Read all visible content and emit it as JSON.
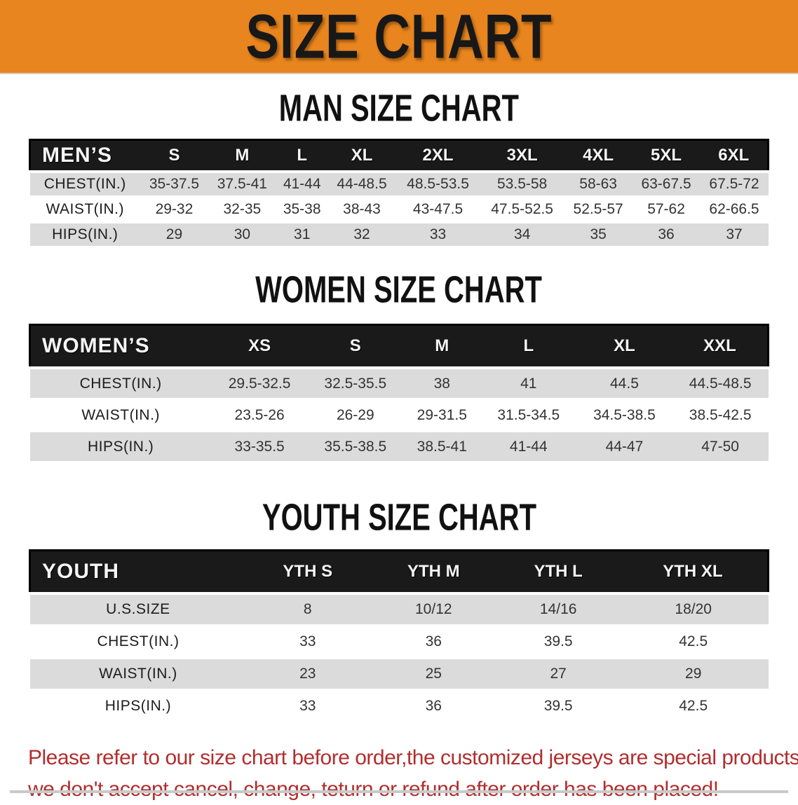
{
  "banner": {
    "title": "SIZE CHART"
  },
  "colors": {
    "banner_bg": "#E8851E",
    "header_bg": "#1A1A1A",
    "row_gray": "#DBDBDB",
    "title_color": "#111111",
    "cell_text": "#333333",
    "disclaimer_red": "#B12E2E"
  },
  "tables": [
    {
      "title": "MAN SIZE CHART",
      "corner_label": "MEN’S",
      "columns": [
        "S",
        "M",
        "L",
        "XL",
        "2XL",
        "3XL",
        "4XL",
        "5XL",
        "6XL"
      ],
      "rows": [
        {
          "label": "CHEST(IN.)",
          "values": [
            "35-37.5",
            "37.5-41",
            "41-44",
            "44-48.5",
            "48.5-53.5",
            "53.5-58",
            "58-63",
            "63-67.5",
            "67.5-72"
          ]
        },
        {
          "label": "WAIST(IN.)",
          "values": [
            "29-32",
            "32-35",
            "35-38",
            "38-43",
            "43-47.5",
            "47.5-52.5",
            "52.5-57",
            "57-62",
            "62-66.5"
          ]
        },
        {
          "label": "HIPS(IN.)",
          "values": [
            "29",
            "30",
            "31",
            "32",
            "33",
            "34",
            "35",
            "36",
            "37"
          ]
        }
      ]
    },
    {
      "title": "WOMEN SIZE CHART",
      "corner_label": "WOMEN’S",
      "columns": [
        "XS",
        "S",
        "M",
        "L",
        "XL",
        "XXL"
      ],
      "rows": [
        {
          "label": "CHEST(IN.)",
          "values": [
            "29.5-32.5",
            "32.5-35.5",
            "38",
            "41",
            "44.5",
            "44.5-48.5"
          ]
        },
        {
          "label": "WAIST(IN.)",
          "values": [
            "23.5-26",
            "26-29",
            "29-31.5",
            "31.5-34.5",
            "34.5-38.5",
            "38.5-42.5"
          ]
        },
        {
          "label": "HIPS(IN.)",
          "values": [
            "33-35.5",
            "35.5-38.5",
            "38.5-41",
            "41-44",
            "44-47",
            "47-50"
          ]
        }
      ]
    },
    {
      "title": "YOUTH SIZE CHART",
      "corner_label": "YOUTH",
      "columns": [
        "YTH S",
        "YTH M",
        "YTH L",
        "YTH XL"
      ],
      "rows": [
        {
          "label": "U.S.SIZE",
          "values": [
            "8",
            "10/12",
            "14/16",
            "18/20"
          ]
        },
        {
          "label": "CHEST(IN.)",
          "values": [
            "33",
            "36",
            "39.5",
            "42.5"
          ]
        },
        {
          "label": "WAIST(IN.)",
          "values": [
            "23",
            "25",
            "27",
            "29"
          ]
        },
        {
          "label": "HIPS(IN.)",
          "values": [
            "33",
            "36",
            "39.5",
            "42.5"
          ]
        }
      ]
    }
  ],
  "disclaimer": {
    "line1": "Please refer to our size chart before order,the customized jerseys are special products,",
    "line2": "we don't accept cancel, change, teturn or refund after order has been placed!"
  }
}
